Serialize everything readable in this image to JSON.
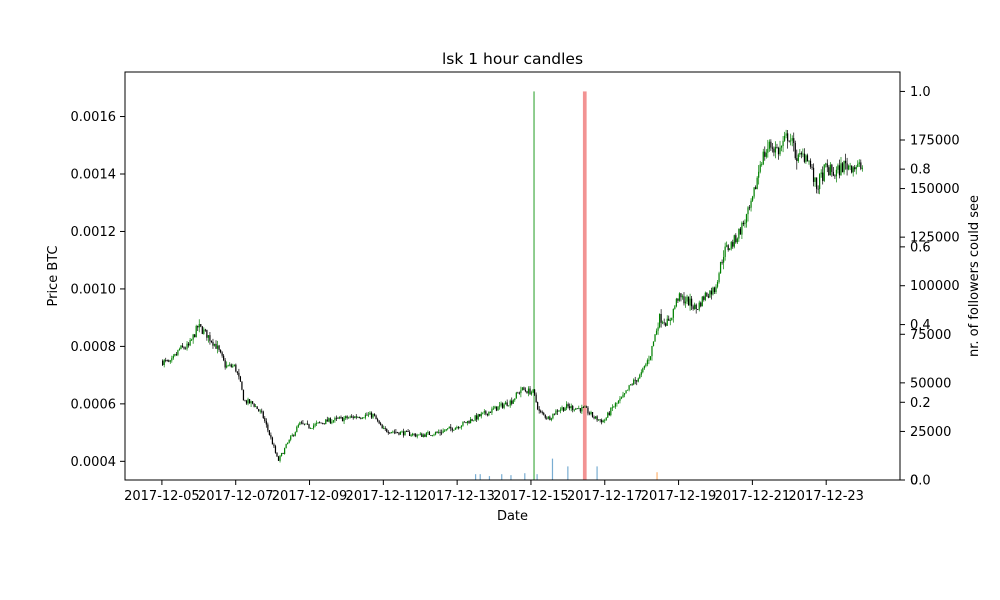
{
  "chart_data": {
    "type": "candlestick",
    "title": "lsk 1 hour candles",
    "xlabel": "Date",
    "ylabel": "Price BTC",
    "y2label": "nr. of followers could see",
    "x_range": [
      "2017-12-04T00:00",
      "2017-12-25T00:00"
    ],
    "ylim": [
      0.000335,
      0.001755
    ],
    "y2lim": [
      0,
      1.05
    ],
    "y3lim": [
      0,
      210000
    ],
    "x_ticks": [
      "2017-12-05",
      "2017-12-07",
      "2017-12-09",
      "2017-12-11",
      "2017-12-13",
      "2017-12-15",
      "2017-12-17",
      "2017-12-19",
      "2017-12-21",
      "2017-12-23"
    ],
    "y_ticks": [
      0.0004,
      0.0006,
      0.0008,
      0.001,
      0.0012,
      0.0014,
      0.0016
    ],
    "y_tick_labels": [
      "0.0004",
      "0.0006",
      "0.0008",
      "0.0010",
      "0.0012",
      "0.0014",
      "0.0016"
    ],
    "y2_ticks": [
      0.0,
      0.2,
      0.4,
      0.6,
      0.8,
      1.0
    ],
    "y2_tick_labels": [
      "0.0",
      "0.2",
      "0.4",
      "0.6",
      "0.8",
      "1.0"
    ],
    "y3_ticks": [
      0,
      25000,
      50000,
      75000,
      100000,
      125000,
      150000,
      175000
    ],
    "y3_tick_labels": [
      "0",
      "25000",
      "50000",
      "75000",
      "100000",
      "125000",
      "150000",
      "175000"
    ],
    "candle_up_color": "#008000",
    "candle_down_color": "#000000",
    "price_path": [
      [
        "2017-12-05T00:00",
        0.00075
      ],
      [
        "2017-12-05T06:00",
        0.00074
      ],
      [
        "2017-12-05T12:00",
        0.00079
      ],
      [
        "2017-12-05T18:00",
        0.0008
      ],
      [
        "2017-12-06T00:00",
        0.00087
      ],
      [
        "2017-12-06T06:00",
        0.00084
      ],
      [
        "2017-12-06T12:00",
        0.0008
      ],
      [
        "2017-12-06T18:00",
        0.00073
      ],
      [
        "2017-12-07T00:00",
        0.00073
      ],
      [
        "2017-12-07T03:00",
        0.00068
      ],
      [
        "2017-12-07T06:00",
        0.00061
      ],
      [
        "2017-12-07T12:00",
        0.0006
      ],
      [
        "2017-12-07T18:00",
        0.00056
      ],
      [
        "2017-12-08T00:00",
        0.00047
      ],
      [
        "2017-12-08T04:00",
        0.0004
      ],
      [
        "2017-12-08T10:00",
        0.00046
      ],
      [
        "2017-12-08T18:00",
        0.00053
      ],
      [
        "2017-12-09T00:00",
        0.00052
      ],
      [
        "2017-12-09T12:00",
        0.00054
      ],
      [
        "2017-12-10T00:00",
        0.00055
      ],
      [
        "2017-12-10T12:00",
        0.00056
      ],
      [
        "2017-12-10T18:00",
        0.00056
      ],
      [
        "2017-12-11T00:00",
        0.00051
      ],
      [
        "2017-12-11T12:00",
        0.0005
      ],
      [
        "2017-12-12T00:00",
        0.00049
      ],
      [
        "2017-12-12T12:00",
        0.0005
      ],
      [
        "2017-12-13T00:00",
        0.00052
      ],
      [
        "2017-12-13T12:00",
        0.00055
      ],
      [
        "2017-12-14T00:00",
        0.00058
      ],
      [
        "2017-12-14T12:00",
        0.00061
      ],
      [
        "2017-12-14T18:00",
        0.00065
      ],
      [
        "2017-12-15T02:00",
        0.00064
      ],
      [
        "2017-12-15T06:00",
        0.00057
      ],
      [
        "2017-12-15T12:00",
        0.00055
      ],
      [
        "2017-12-15T18:00",
        0.00058
      ],
      [
        "2017-12-16T00:00",
        0.00059
      ],
      [
        "2017-12-16T12:00",
        0.00058
      ],
      [
        "2017-12-16T18:00",
        0.00055
      ],
      [
        "2017-12-17T00:00",
        0.00054
      ],
      [
        "2017-12-17T06:00",
        0.00059
      ],
      [
        "2017-12-17T12:00",
        0.00062
      ],
      [
        "2017-12-17T18:00",
        0.00067
      ],
      [
        "2017-12-18T00:00",
        0.0007
      ],
      [
        "2017-12-18T06:00",
        0.00077
      ],
      [
        "2017-12-18T12:00",
        0.0009
      ],
      [
        "2017-12-18T18:00",
        0.00088
      ],
      [
        "2017-12-19T00:00",
        0.00097
      ],
      [
        "2017-12-19T06:00",
        0.00096
      ],
      [
        "2017-12-19T12:00",
        0.00093
      ],
      [
        "2017-12-19T18:00",
        0.00098
      ],
      [
        "2017-12-20T00:00",
        0.001
      ],
      [
        "2017-12-20T06:00",
        0.00113
      ],
      [
        "2017-12-20T12:00",
        0.00116
      ],
      [
        "2017-12-20T18:00",
        0.00122
      ],
      [
        "2017-12-21T00:00",
        0.00129
      ],
      [
        "2017-12-21T06:00",
        0.00145
      ],
      [
        "2017-12-21T12:00",
        0.0015
      ],
      [
        "2017-12-21T18:00",
        0.00148
      ],
      [
        "2017-12-22T00:00",
        0.00154
      ],
      [
        "2017-12-22T06:00",
        0.00145
      ],
      [
        "2017-12-22T12:00",
        0.00147
      ],
      [
        "2017-12-22T18:00",
        0.00135
      ],
      [
        "2017-12-23T00:00",
        0.00142
      ],
      [
        "2017-12-23T06:00",
        0.0014
      ],
      [
        "2017-12-23T12:00",
        0.00143
      ],
      [
        "2017-12-23T18:00",
        0.00143
      ],
      [
        "2017-12-24T00:00",
        0.00142
      ]
    ],
    "candle_count": 460,
    "follower_bars": [
      {
        "time": "2017-12-15T02:00",
        "value": 1.0,
        "color": "#2ca02c",
        "width_hours": 0.8
      },
      {
        "time": "2017-12-16T11:00",
        "value": 1.0,
        "color": "#f08080",
        "width_hours": 2.4
      }
    ],
    "follower_count_bars": [
      {
        "time": "2017-12-13T12:00",
        "value": 3000,
        "color": "#1f77b4"
      },
      {
        "time": "2017-12-13T15:00",
        "value": 3000,
        "color": "#1f77b4"
      },
      {
        "time": "2017-12-13T21:00",
        "value": 2000,
        "color": "#1f77b4"
      },
      {
        "time": "2017-12-14T05:00",
        "value": 3000,
        "color": "#1f77b4"
      },
      {
        "time": "2017-12-14T11:00",
        "value": 2500,
        "color": "#1f77b4"
      },
      {
        "time": "2017-12-14T20:00",
        "value": 3500,
        "color": "#1f77b4"
      },
      {
        "time": "2017-12-15T04:00",
        "value": 3000,
        "color": "#1f77b4"
      },
      {
        "time": "2017-12-15T14:00",
        "value": 11000,
        "color": "#1f77b4"
      },
      {
        "time": "2017-12-16T00:00",
        "value": 7000,
        "color": "#1f77b4"
      },
      {
        "time": "2017-12-16T19:00",
        "value": 7000,
        "color": "#1f77b4"
      },
      {
        "time": "2017-12-18T10:00",
        "value": 4000,
        "color": "#ff7f0e"
      }
    ]
  }
}
